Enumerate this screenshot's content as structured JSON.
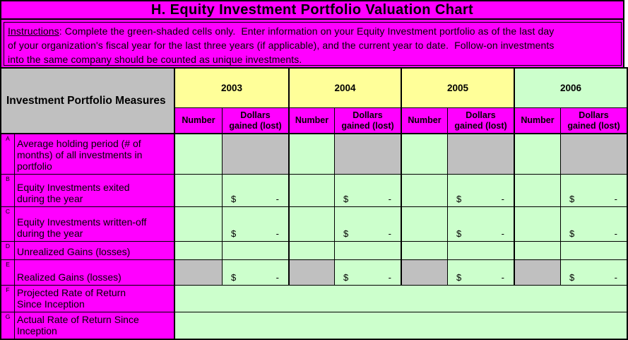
{
  "title": "H. Equity Investment Portfolio Valuation Chart",
  "instructions": {
    "label": "Instructions",
    "body": ": Complete the green-shaded cells only.  Enter information on your Equity Investment portfolio as of the last day\nof your organization's fiscal year for the last three years (if applicable), and the current year to date.  Follow-on investments\ninto the same company should be counted as unique investments."
  },
  "colors": {
    "magenta": "#FF00FF",
    "pale_yellow": "#FFFF99",
    "pale_green": "#CCFFCC",
    "gray": "#C0C0C0"
  },
  "table": {
    "corner_header": "Investment Portfolio Measures",
    "years": [
      "2003",
      "2004",
      "2005",
      "2006"
    ],
    "subheaders": {
      "number": "Number",
      "dollars": "Dollars gained (lost)"
    },
    "dollar_cell": {
      "symbol": "$",
      "value": "-"
    },
    "rows": [
      {
        "letter": "A",
        "label": "Average holding period (# of\nmonths) of all investments in\nportfolio"
      },
      {
        "letter": "B",
        "label": "Equity Investments exited\nduring the year"
      },
      {
        "letter": "C",
        "label": "Equity Investments written-off\nduring the year"
      },
      {
        "letter": "D",
        "label": "Unrealized Gains (losses)"
      },
      {
        "letter": "E",
        "label": "Realized Gains (losses)"
      },
      {
        "letter": "F",
        "label": "Projected Rate of Return\nSince Inception"
      },
      {
        "letter": "G",
        "label": "Actual Rate of Return Since\nInception"
      }
    ]
  }
}
